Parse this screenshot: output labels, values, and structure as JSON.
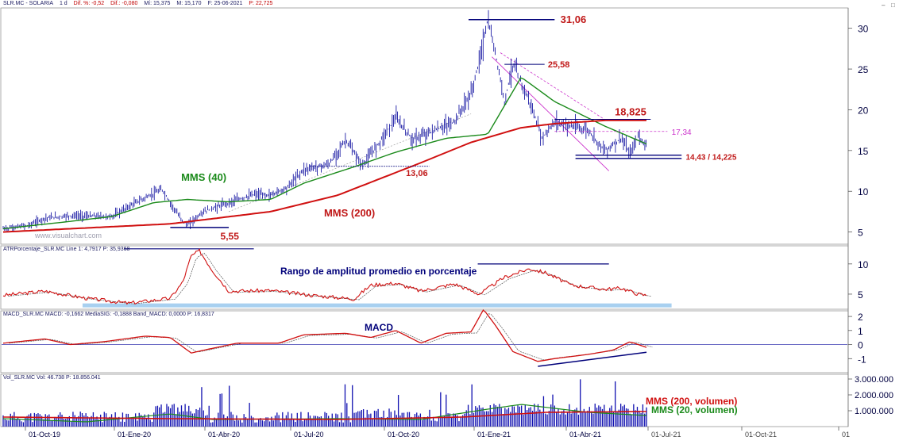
{
  "watermark": "www.visualchart.com",
  "window_controls": {
    "minimize": "–",
    "maximize": "□"
  },
  "headers": {
    "price": {
      "symbol": "SLR.MC - SOLARIA",
      "period": "1 d",
      "dif_pct": "Dif. %: -0,52",
      "dif": "Dif.: -0,080",
      "mi": "Mí: 15,375",
      "mx": "M: 15,170",
      "date": "F: 25-06-2021",
      "p": "P: 22,725"
    },
    "atr": "ATRPorcentaje_SLR.MC Line 1: 4,7917  P: 35,9368",
    "macd": "MACD_SLR.MC MACD: -0,1662  MediaSIG: -0,1888  Band_MACD: 0,0000  P: 16,8317",
    "vol": "Vol_SLR.MC Vol: 46.738  P: 18.856.041"
  },
  "x_axis": {
    "labels": [
      "01-Oct-19",
      "01-Ene-20",
      "01-Abr-20",
      "01-Jul-20",
      "01-Oct-20",
      "01-Ene-21",
      "01-Abr-21",
      "01-Jul-21",
      "01-Oct-21",
      "01"
    ]
  },
  "colors": {
    "price_line": "#00009a",
    "mms40": "#1a8a1a",
    "mms200": "#d01010",
    "annot_red": "#c01818",
    "annot_navy": "#00007a",
    "magenta": "#cc33cc",
    "atr_band": "#a8d0f0",
    "macd_line": "#d01010",
    "vol_bar": "#1010b0",
    "bg_axis": "#ffffff"
  },
  "chart_data": [
    {
      "type": "line",
      "name": "price",
      "x": [
        "01-Oct-19",
        "01-Ene-20",
        "01-Abr-20",
        "01-Jul-20",
        "01-Oct-20",
        "01-Ene-21",
        "01-Abr-21",
        "01-Jul-21"
      ],
      "ylim": [
        3.5,
        32.5
      ],
      "yticks": [
        5,
        10,
        15,
        20,
        25,
        30
      ],
      "series": [
        {
          "name": "MMS (40)",
          "points": [
            [
              0,
              5.4
            ],
            [
              0.08,
              6.3
            ],
            [
              0.13,
              6.9
            ],
            [
              0.18,
              8.6
            ],
            [
              0.22,
              9.0
            ],
            [
              0.27,
              8.7
            ],
            [
              0.32,
              9.0
            ],
            [
              0.36,
              11.0
            ],
            [
              0.42,
              13.0
            ],
            [
              0.47,
              14.8
            ],
            [
              0.53,
              16.5
            ],
            [
              0.58,
              17.0
            ],
            [
              0.62,
              24.0
            ],
            [
              0.66,
              21.0
            ],
            [
              0.72,
              18.0
            ],
            [
              0.77,
              15.8
            ]
          ]
        },
        {
          "name": "MMS (200)",
          "points": [
            [
              0,
              5.0
            ],
            [
              0.2,
              6.0
            ],
            [
              0.32,
              7.5
            ],
            [
              0.4,
              9.5
            ],
            [
              0.5,
              13.5
            ],
            [
              0.56,
              16.0
            ],
            [
              0.62,
              17.8
            ],
            [
              0.66,
              18.3
            ],
            [
              0.72,
              18.7
            ],
            [
              0.77,
              18.7
            ]
          ]
        }
      ],
      "price_points": [
        [
          0,
          5.4
        ],
        [
          0.03,
          5.8
        ],
        [
          0.05,
          6.7
        ],
        [
          0.08,
          7.0
        ],
        [
          0.13,
          6.9
        ],
        [
          0.16,
          8.7
        ],
        [
          0.19,
          10.2
        ],
        [
          0.21,
          7.0
        ],
        [
          0.22,
          5.8
        ],
        [
          0.24,
          7.5
        ],
        [
          0.27,
          8.6
        ],
        [
          0.3,
          9.6
        ],
        [
          0.32,
          9.5
        ],
        [
          0.34,
          10.5
        ],
        [
          0.36,
          12.7
        ],
        [
          0.39,
          13.3
        ],
        [
          0.41,
          16.3
        ],
        [
          0.43,
          13.1
        ],
        [
          0.45,
          16.0
        ],
        [
          0.47,
          19.0
        ],
        [
          0.49,
          16.3
        ],
        [
          0.51,
          17.2
        ],
        [
          0.54,
          18.5
        ],
        [
          0.56,
          22.0
        ],
        [
          0.57,
          26.0
        ],
        [
          0.58,
          31.06
        ],
        [
          0.59,
          26.5
        ],
        [
          0.6,
          21.0
        ],
        [
          0.61,
          25.58
        ],
        [
          0.63,
          21.0
        ],
        [
          0.645,
          16.5
        ],
        [
          0.66,
          18.5
        ],
        [
          0.68,
          18.0
        ],
        [
          0.7,
          17.5
        ],
        [
          0.72,
          15.0
        ],
        [
          0.74,
          16.5
        ],
        [
          0.75,
          14.5
        ],
        [
          0.76,
          16.8
        ],
        [
          0.77,
          15.6
        ]
      ],
      "annotations": [
        "31,06",
        "25,58",
        "18,825",
        "17,34",
        "14,43 / 14,225",
        "13,06",
        "5,55",
        "MMS (40)",
        "MMS (200)"
      ]
    },
    {
      "type": "line",
      "name": "ATR",
      "ylim": [
        2.5,
        13
      ],
      "yticks": [
        5,
        10
      ],
      "title": "Rango de amplitud promedio en porcentaje",
      "points": [
        [
          0,
          4.8
        ],
        [
          0.05,
          5.5
        ],
        [
          0.1,
          4.3
        ],
        [
          0.15,
          3.5
        ],
        [
          0.2,
          4.3
        ],
        [
          0.215,
          7.0
        ],
        [
          0.225,
          11.3
        ],
        [
          0.235,
          12.2
        ],
        [
          0.25,
          9.0
        ],
        [
          0.27,
          5.5
        ],
        [
          0.32,
          5.6
        ],
        [
          0.37,
          4.8
        ],
        [
          0.42,
          4.2
        ],
        [
          0.44,
          6.5
        ],
        [
          0.47,
          6.8
        ],
        [
          0.5,
          5.5
        ],
        [
          0.54,
          6.7
        ],
        [
          0.57,
          5.0
        ],
        [
          0.6,
          7.8
        ],
        [
          0.63,
          9.2
        ],
        [
          0.65,
          8.5
        ],
        [
          0.68,
          6.5
        ],
        [
          0.72,
          5.8
        ],
        [
          0.74,
          6.0
        ],
        [
          0.76,
          5.0
        ],
        [
          0.77,
          4.8
        ]
      ]
    },
    {
      "type": "line",
      "name": "MACD",
      "ylim": [
        -2.0,
        2.4
      ],
      "yticks": [
        -1,
        0,
        1,
        2
      ],
      "title": "MACD",
      "points": [
        [
          0,
          0.1
        ],
        [
          0.05,
          0.4
        ],
        [
          0.08,
          0.0
        ],
        [
          0.12,
          0.2
        ],
        [
          0.17,
          0.6
        ],
        [
          0.2,
          0.5
        ],
        [
          0.225,
          -0.6
        ],
        [
          0.24,
          -0.4
        ],
        [
          0.28,
          0.1
        ],
        [
          0.33,
          0.1
        ],
        [
          0.36,
          0.7
        ],
        [
          0.41,
          0.8
        ],
        [
          0.44,
          0.5
        ],
        [
          0.47,
          1.0
        ],
        [
          0.5,
          0.1
        ],
        [
          0.53,
          0.8
        ],
        [
          0.56,
          0.9
        ],
        [
          0.575,
          2.5
        ],
        [
          0.59,
          1.3
        ],
        [
          0.61,
          -0.5
        ],
        [
          0.64,
          -1.2
        ],
        [
          0.66,
          -1.0
        ],
        [
          0.7,
          -0.7
        ],
        [
          0.73,
          -0.4
        ],
        [
          0.75,
          0.2
        ],
        [
          0.77,
          -0.2
        ]
      ]
    },
    {
      "type": "bar",
      "name": "Volume",
      "ylim": [
        0,
        3300000
      ],
      "yticks": [
        1000000,
        2000000,
        3000000
      ],
      "tick_labels": [
        "1.000.000",
        "2.000.000",
        "3.000.000"
      ],
      "series_labels": [
        "MMS (200, volumen)",
        "MMS (20, volumen)"
      ]
    }
  ]
}
